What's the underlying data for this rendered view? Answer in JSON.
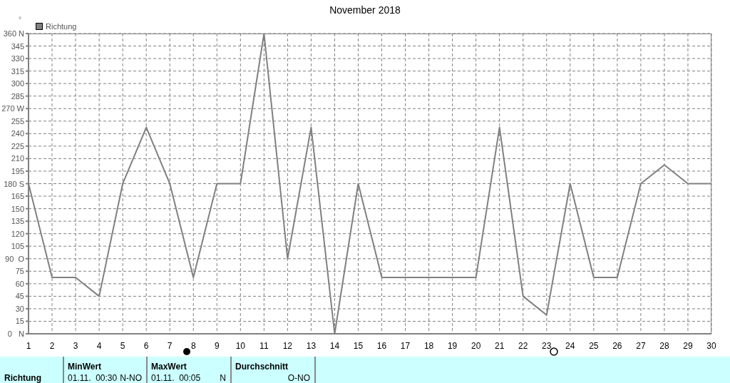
{
  "chart_data": {
    "type": "line",
    "title": "November 2018",
    "ylabel": "°",
    "x": [
      1,
      2,
      3,
      4,
      5,
      6,
      7,
      8,
      9,
      10,
      11,
      12,
      13,
      14,
      15,
      16,
      17,
      18,
      19,
      20,
      21,
      22,
      23,
      24,
      25,
      26,
      27,
      28,
      29,
      30
    ],
    "series": [
      {
        "name": "Richtung",
        "color": "#808080",
        "values": [
          180,
          67.5,
          67.5,
          45,
          180,
          247.5,
          180,
          67.5,
          180,
          180,
          360,
          90,
          247.5,
          0,
          180,
          67.5,
          67.5,
          67.5,
          67.5,
          67.5,
          247.5,
          45,
          22.5,
          180,
          67.5,
          67.5,
          180,
          202.5,
          180,
          180
        ]
      }
    ],
    "xlim": [
      1,
      30
    ],
    "xticks": [
      1,
      2,
      3,
      4,
      5,
      6,
      7,
      8,
      9,
      10,
      11,
      12,
      13,
      14,
      15,
      16,
      17,
      18,
      19,
      20,
      21,
      22,
      23,
      24,
      25,
      26,
      27,
      28,
      29,
      30
    ],
    "ylim": [
      0,
      360
    ],
    "yticks": [
      {
        "value": 0,
        "label": "0   N"
      },
      15,
      30,
      45,
      60,
      75,
      {
        "value": 90,
        "label": "90  O"
      },
      105,
      120,
      135,
      150,
      165,
      {
        "value": 180,
        "label": "180 S"
      },
      195,
      210,
      225,
      240,
      255,
      {
        "value": 270,
        "label": "270 W"
      },
      285,
      300,
      315,
      330,
      345,
      {
        "value": 360,
        "label": "360 N"
      }
    ],
    "grid": true,
    "legend": "top left",
    "marker": "none",
    "line_style": "solid",
    "annotations": [
      "Richtung",
      "MinWert",
      "01.11.  00:30",
      "N-NO",
      "MaxWert",
      "01.11.  00:05",
      "N",
      "Durchschnitt",
      "O-NO"
    ]
  }
}
